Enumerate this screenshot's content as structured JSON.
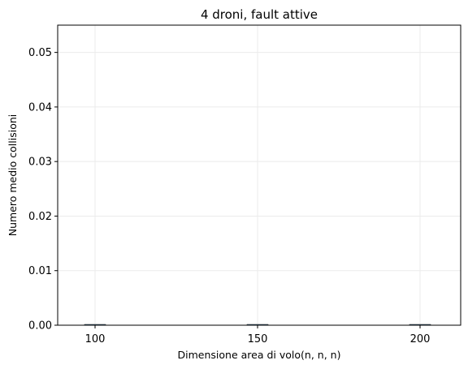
{
  "chart_data": {
    "type": "bar",
    "title": "4 droni, fault attive",
    "xlabel": "Dimensione area di volo(n, n, n)",
    "ylabel": "Numero medio collisioni",
    "categories": [
      "100",
      "150",
      "200"
    ],
    "values": [
      0.0,
      0.0,
      0.0
    ],
    "ylim": [
      0,
      0.055
    ],
    "yticks": [
      "0.00",
      "0.01",
      "0.02",
      "0.03",
      "0.04",
      "0.05"
    ],
    "grid": true,
    "bar_color": "#1f77b4"
  }
}
